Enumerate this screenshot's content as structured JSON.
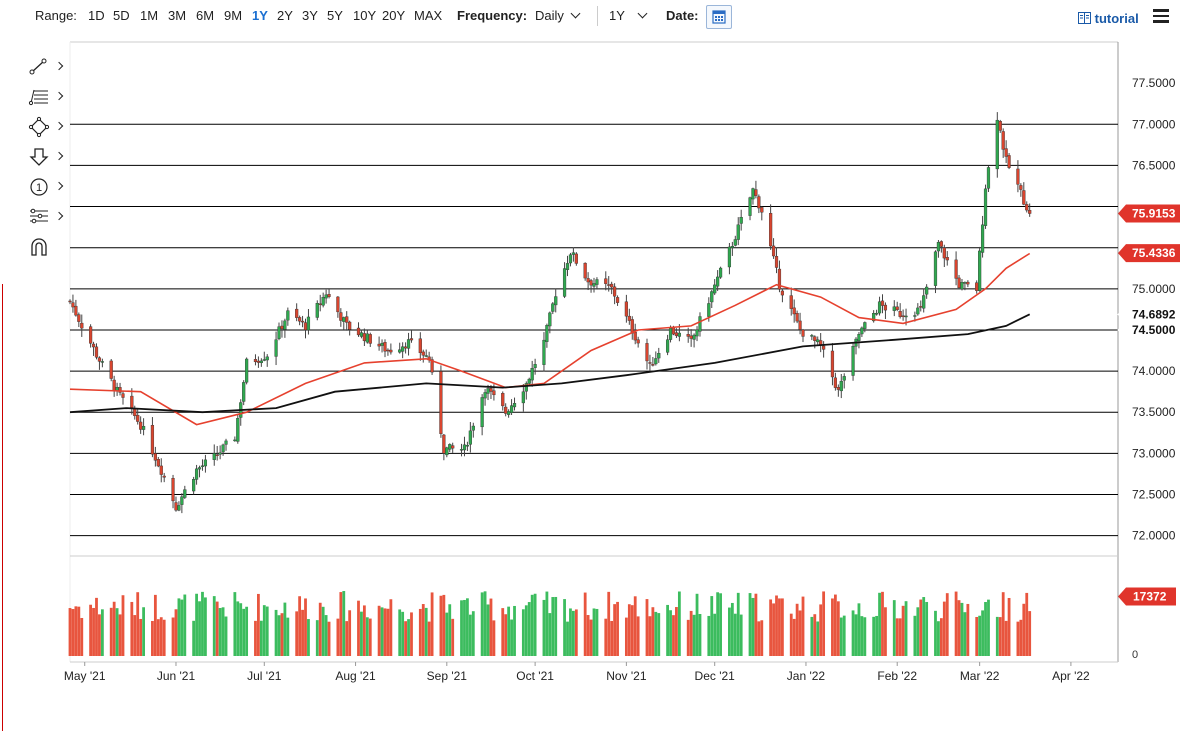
{
  "toolbar": {
    "range_label": "Range:",
    "ranges": [
      "1D",
      "5D",
      "1M",
      "3M",
      "6M",
      "9M",
      "1Y",
      "2Y",
      "3Y",
      "5Y",
      "10Y",
      "20Y",
      "MAX"
    ],
    "active_range": "1Y",
    "frequency_label": "Frequency:",
    "frequency_value": "Daily",
    "period_value": "1Y",
    "date_label": "Date:",
    "calendar_icon": "calendar-icon",
    "tutorial_label": "tutorial",
    "tutorial_icon": "book-icon",
    "menu_icon": "hamburger-menu-icon"
  },
  "drawing_tools": [
    {
      "name": "trendline-tool",
      "icon": "trendline-icon"
    },
    {
      "name": "fibonacci-tool",
      "icon": "fibonacci-icon"
    },
    {
      "name": "shapes-tool",
      "icon": "shapes-icon"
    },
    {
      "name": "arrow-tool",
      "icon": "arrow-down-icon"
    },
    {
      "name": "annotation-tool",
      "icon": "number-one-icon"
    },
    {
      "name": "measure-tool",
      "icon": "measure-icon"
    },
    {
      "name": "magnet-tool",
      "icon": "magnet-icon"
    }
  ],
  "chart_data": {
    "type": "candlestick",
    "ylim": [
      71.85,
      78.0
    ],
    "y_ticks": [
      "77.5000",
      "77.0000",
      "76.5000",
      "75.0000",
      "74.0000",
      "73.5000",
      "73.0000",
      "72.5000",
      "72.0000"
    ],
    "y_tick_values": [
      77.5,
      77.0,
      76.5,
      75.0,
      74.0,
      73.5,
      73.0,
      72.5,
      72.0
    ],
    "horizontal_lines": [
      77.0,
      76.5,
      76.0,
      75.5,
      75.0,
      74.5,
      74.0,
      73.5,
      73.0,
      72.5,
      72.0
    ],
    "x_labels": [
      "May '21",
      "Jun '21",
      "Jul '21",
      "Aug '21",
      "Sep '21",
      "Oct '21",
      "Nov '21",
      "Dec '21",
      "Jan '22",
      "Feb '22",
      "Mar '22",
      "Apr '22"
    ],
    "x_label_dates": [
      "2021-05-01",
      "2021-06-01",
      "2021-07-01",
      "2021-08-01",
      "2021-09-01",
      "2021-10-01",
      "2021-11-01",
      "2021-12-01",
      "2022-01-01",
      "2022-02-01",
      "2022-03-01",
      "2022-04-01"
    ],
    "x_range": [
      "2021-04-26",
      "2022-04-17"
    ],
    "last_date": "2022-03-18",
    "price_badges": [
      {
        "label": "75.9153",
        "value": 75.9153,
        "color": "#e0342b"
      },
      {
        "label": "75.4336",
        "value": 75.4336,
        "color": "#e0342b"
      },
      {
        "label": "74.6892",
        "value": 74.6892,
        "color": "#ffffff"
      },
      {
        "label": "74.5000",
        "value": 74.5,
        "color": "#ffffff"
      }
    ],
    "close_path": [
      [
        "2021-04-26",
        74.85
      ],
      [
        "2021-05-05",
        74.2
      ],
      [
        "2021-05-12",
        73.75
      ],
      [
        "2021-05-20",
        73.35
      ],
      [
        "2021-05-27",
        72.8
      ],
      [
        "2021-06-01",
        72.35
      ],
      [
        "2021-06-08",
        72.8
      ],
      [
        "2021-06-14",
        72.95
      ],
      [
        "2021-06-21",
        73.2
      ],
      [
        "2021-06-25",
        74.1
      ],
      [
        "2021-07-02",
        74.2
      ],
      [
        "2021-07-09",
        74.7
      ],
      [
        "2021-07-15",
        74.55
      ],
      [
        "2021-07-22",
        74.95
      ],
      [
        "2021-07-29",
        74.55
      ],
      [
        "2021-08-05",
        74.4
      ],
      [
        "2021-08-12",
        74.25
      ],
      [
        "2021-08-19",
        74.35
      ],
      [
        "2021-08-26",
        74.15
      ],
      [
        "2021-08-31",
        73.05
      ],
      [
        "2021-09-07",
        73.05
      ],
      [
        "2021-09-14",
        73.8
      ],
      [
        "2021-09-21",
        73.5
      ],
      [
        "2021-09-28",
        73.85
      ],
      [
        "2021-10-04",
        74.35
      ],
      [
        "2021-10-08",
        74.95
      ],
      [
        "2021-10-13",
        75.45
      ],
      [
        "2021-10-19",
        75.1
      ],
      [
        "2021-10-27",
        75.0
      ],
      [
        "2021-11-03",
        74.5
      ],
      [
        "2021-11-09",
        74.05
      ],
      [
        "2021-11-16",
        74.5
      ],
      [
        "2021-11-23",
        74.35
      ],
      [
        "2021-11-30",
        74.95
      ],
      [
        "2021-12-07",
        75.55
      ],
      [
        "2021-12-14",
        76.2
      ],
      [
        "2021-12-17",
        75.95
      ],
      [
        "2021-12-23",
        75.05
      ],
      [
        "2021-12-30",
        74.5
      ],
      [
        "2022-01-06",
        74.3
      ],
      [
        "2022-01-12",
        73.75
      ],
      [
        "2022-01-19",
        74.45
      ],
      [
        "2022-01-26",
        74.8
      ],
      [
        "2022-02-02",
        74.7
      ],
      [
        "2022-02-09",
        74.75
      ],
      [
        "2022-02-15",
        75.55
      ],
      [
        "2022-02-22",
        75.05
      ],
      [
        "2022-02-28",
        75.0
      ],
      [
        "2022-03-03",
        76.25
      ],
      [
        "2022-03-07",
        77.1
      ],
      [
        "2022-03-10",
        76.55
      ],
      [
        "2022-03-14",
        76.25
      ],
      [
        "2022-03-18",
        75.9153
      ]
    ],
    "series": [
      {
        "name": "",
        "color": "#e6412e",
        "points": [
          [
            "2021-04-26",
            73.78
          ],
          [
            "2021-05-20",
            73.75
          ],
          [
            "2021-06-08",
            73.35
          ],
          [
            "2021-06-25",
            73.5
          ],
          [
            "2021-07-15",
            73.85
          ],
          [
            "2021-08-04",
            74.1
          ],
          [
            "2021-08-25",
            74.15
          ],
          [
            "2021-09-06",
            74.0
          ],
          [
            "2021-09-21",
            73.8
          ],
          [
            "2021-10-04",
            73.85
          ],
          [
            "2021-10-20",
            74.25
          ],
          [
            "2021-11-05",
            74.5
          ],
          [
            "2021-11-23",
            74.55
          ],
          [
            "2021-12-08",
            74.8
          ],
          [
            "2021-12-22",
            75.05
          ],
          [
            "2022-01-06",
            74.9
          ],
          [
            "2022-01-19",
            74.65
          ],
          [
            "2022-02-03",
            74.58
          ],
          [
            "2022-02-21",
            74.75
          ],
          [
            "2022-03-03",
            75.0
          ],
          [
            "2022-03-10",
            75.25
          ],
          [
            "2022-03-18",
            75.43
          ]
        ]
      },
      {
        "name": "",
        "color": "#111111",
        "points": [
          [
            "2021-04-26",
            73.5
          ],
          [
            "2021-05-15",
            73.55
          ],
          [
            "2021-06-10",
            73.5
          ],
          [
            "2021-07-05",
            73.55
          ],
          [
            "2021-07-25",
            73.75
          ],
          [
            "2021-08-25",
            73.85
          ],
          [
            "2021-09-20",
            73.8
          ],
          [
            "2021-10-10",
            73.85
          ],
          [
            "2021-11-01",
            73.95
          ],
          [
            "2021-12-01",
            74.1
          ],
          [
            "2021-12-31",
            74.3
          ],
          [
            "2022-01-31",
            74.38
          ],
          [
            "2022-02-25",
            74.45
          ],
          [
            "2022-03-10",
            74.55
          ],
          [
            "2022-03-18",
            74.69
          ]
        ]
      }
    ],
    "volume": {
      "last_label": "17372",
      "last_value": 17372,
      "zero_label": "0",
      "ymax": 28000
    }
  }
}
